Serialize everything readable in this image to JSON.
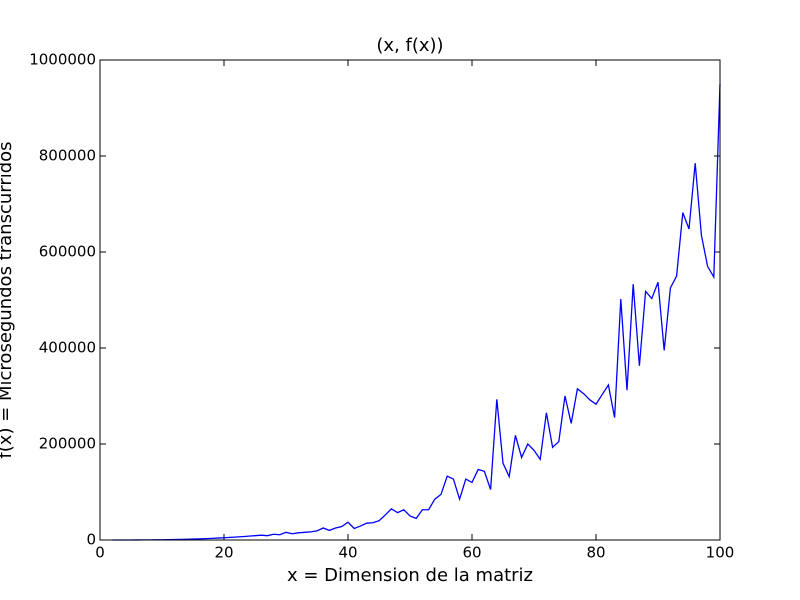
{
  "chart_data": {
    "type": "line",
    "title": "(x, f(x))",
    "x_label": "x = Dimension de la matriz",
    "y_label": "f(x) = Microsegundos transcurridos",
    "x": [
      2,
      3,
      4,
      5,
      6,
      7,
      8,
      9,
      10,
      11,
      12,
      13,
      14,
      15,
      16,
      17,
      18,
      19,
      20,
      21,
      22,
      23,
      24,
      25,
      26,
      27,
      28,
      29,
      30,
      31,
      32,
      33,
      34,
      35,
      36,
      37,
      38,
      39,
      40,
      41,
      42,
      43,
      44,
      45,
      46,
      47,
      48,
      49,
      50,
      51,
      52,
      53,
      54,
      55,
      56,
      57,
      58,
      59,
      60,
      61,
      62,
      63,
      64,
      65,
      66,
      67,
      68,
      69,
      70,
      71,
      72,
      73,
      74,
      75,
      76,
      77,
      78,
      79,
      80,
      81,
      82,
      83,
      84,
      85,
      86,
      87,
      88,
      89,
      90,
      91,
      92,
      93,
      94,
      95,
      96,
      97,
      98,
      99,
      100
    ],
    "series": [
      {
        "name": "f(x)",
        "color": "#0000ff",
        "values": [
          5,
          16,
          40,
          75,
          130,
          200,
          300,
          420,
          580,
          770,
          1000,
          1280,
          1600,
          2000,
          2400,
          2900,
          3400,
          4000,
          4700,
          5400,
          6200,
          7000,
          8000,
          9000,
          10000,
          9000,
          12000,
          11000,
          16000,
          13000,
          15000,
          16000,
          17000,
          19000,
          25000,
          20000,
          25000,
          28000,
          37000,
          24000,
          29000,
          35000,
          36000,
          40000,
          52000,
          65000,
          57000,
          63000,
          50000,
          45000,
          63000,
          63000,
          85000,
          95000,
          133000,
          127000,
          85000,
          127000,
          120000,
          147000,
          143000,
          105000,
          293000,
          160000,
          132000,
          218000,
          172000,
          200000,
          187000,
          168000,
          265000,
          193000,
          205000,
          300000,
          243000,
          315000,
          305000,
          292000,
          283000,
          303000,
          323000,
          255000,
          502000,
          312000,
          533000,
          363000,
          518000,
          503000,
          537000,
          395000,
          525000,
          550000,
          682000,
          648000,
          785000,
          635000,
          570000,
          548000,
          950000
        ]
      }
    ],
    "xlim": [
      0,
      100
    ],
    "xticks": [
      0,
      20,
      40,
      60,
      80,
      100
    ],
    "ylim": [
      0,
      1000000
    ],
    "yticks": [
      0,
      200000,
      400000,
      600000,
      800000,
      1000000
    ]
  }
}
